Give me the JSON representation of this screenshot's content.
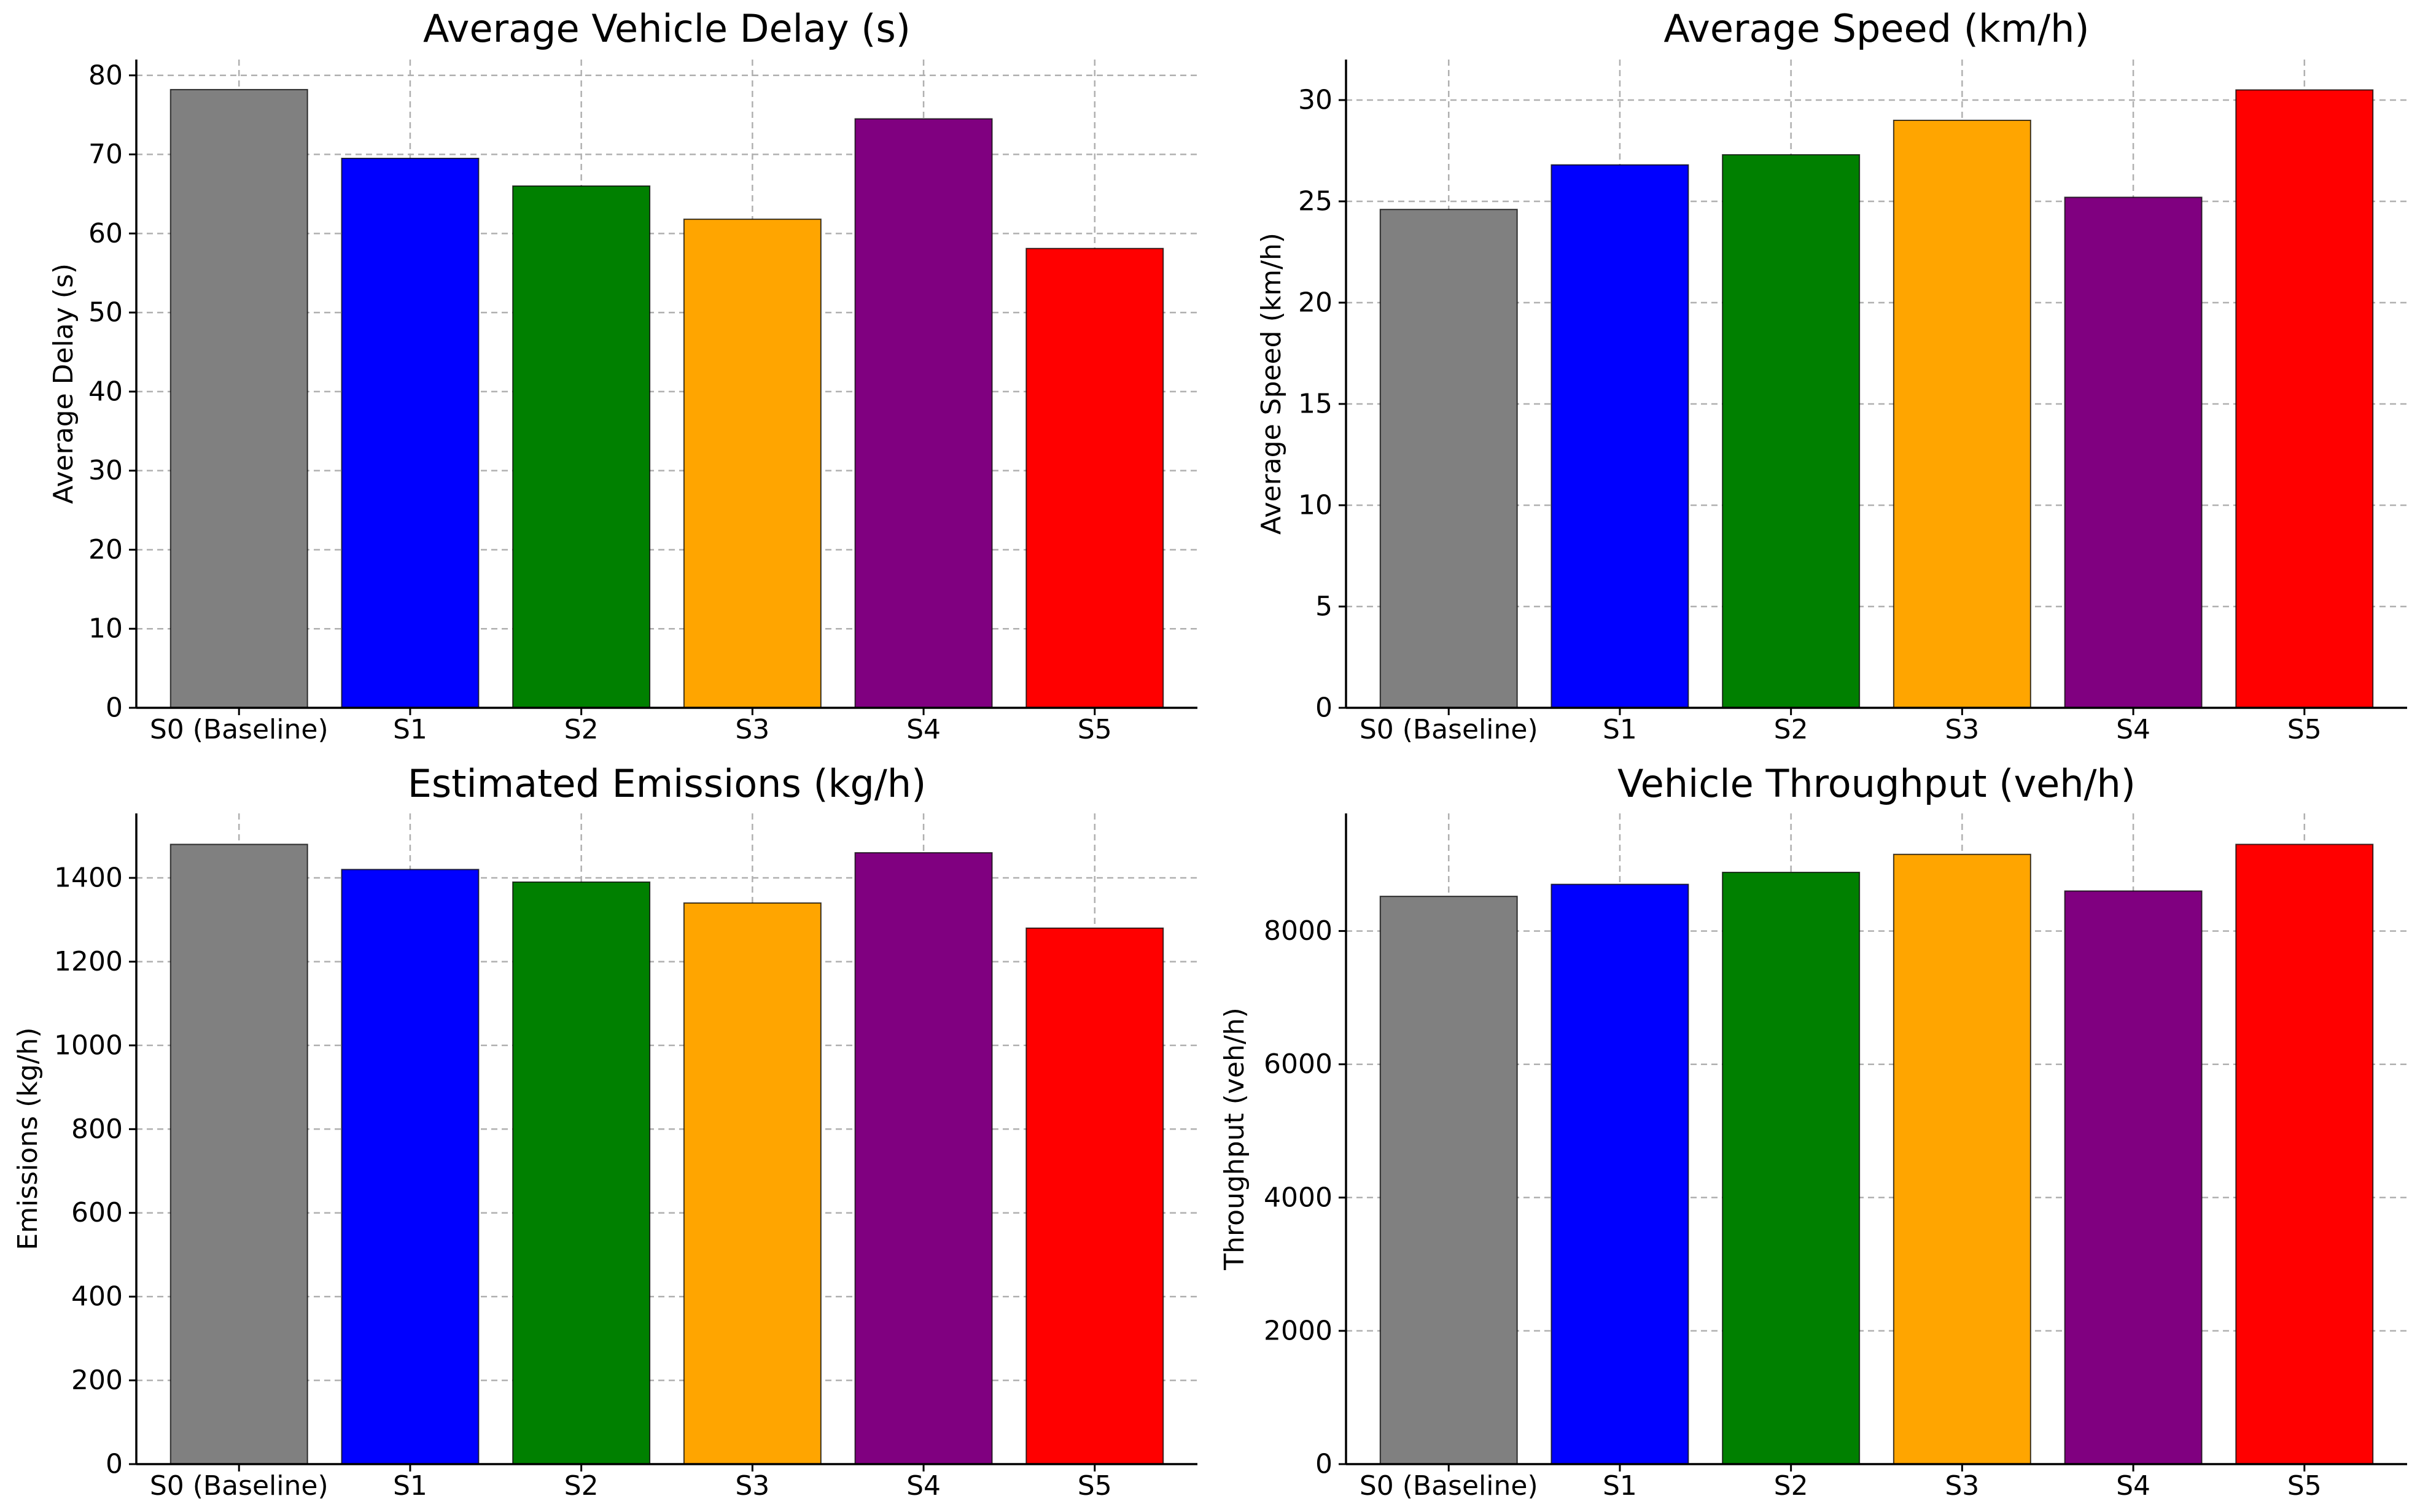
{
  "colors": {
    "S0 (Baseline)": "#808080",
    "S1": "#0000ff",
    "S2": "#008000",
    "S3": "#ffa500",
    "S4": "#800080",
    "S5": "#ff0000"
  },
  "chart_data": [
    {
      "type": "bar",
      "title": "Average Vehicle Delay (s)",
      "xlabel": "",
      "ylabel": "Average Delay (s)",
      "categories": [
        "S0 (Baseline)",
        "S1",
        "S2",
        "S3",
        "S4",
        "S5"
      ],
      "values": [
        78.2,
        69.5,
        66.0,
        61.8,
        74.5,
        58.1
      ],
      "ylim": [
        0,
        82
      ],
      "yticks": [
        0,
        10,
        20,
        30,
        40,
        50,
        60,
        70,
        80
      ],
      "grid": true
    },
    {
      "type": "bar",
      "title": "Average Speed (km/h)",
      "xlabel": "",
      "ylabel": "Average Speed (km/h)",
      "categories": [
        "S0 (Baseline)",
        "S1",
        "S2",
        "S3",
        "S4",
        "S5"
      ],
      "values": [
        24.6,
        26.8,
        27.3,
        29.0,
        25.2,
        30.5
      ],
      "ylim": [
        0,
        32
      ],
      "yticks": [
        0,
        5,
        10,
        15,
        20,
        25,
        30
      ],
      "grid": true
    },
    {
      "type": "bar",
      "title": "Estimated Emissions (kg/h)",
      "xlabel": "",
      "ylabel": "Emissions (kg/h)",
      "categories": [
        "S0 (Baseline)",
        "S1",
        "S2",
        "S3",
        "S4",
        "S5"
      ],
      "values": [
        1480,
        1420,
        1390,
        1340,
        1460,
        1280
      ],
      "ylim": [
        0,
        1554
      ],
      "yticks": [
        0,
        200,
        400,
        600,
        800,
        1000,
        1200,
        1400
      ],
      "grid": true
    },
    {
      "type": "bar",
      "title": "Vehicle Throughput (veh/h)",
      "xlabel": "",
      "ylabel": "Throughput (veh/h)",
      "categories": [
        "S0 (Baseline)",
        "S1",
        "S2",
        "S3",
        "S4",
        "S5"
      ],
      "values": [
        8520,
        8700,
        8880,
        9150,
        8600,
        9300
      ],
      "ylim": [
        0,
        9765
      ],
      "yticks": [
        0,
        2000,
        4000,
        6000,
        8000
      ],
      "grid": true
    }
  ]
}
